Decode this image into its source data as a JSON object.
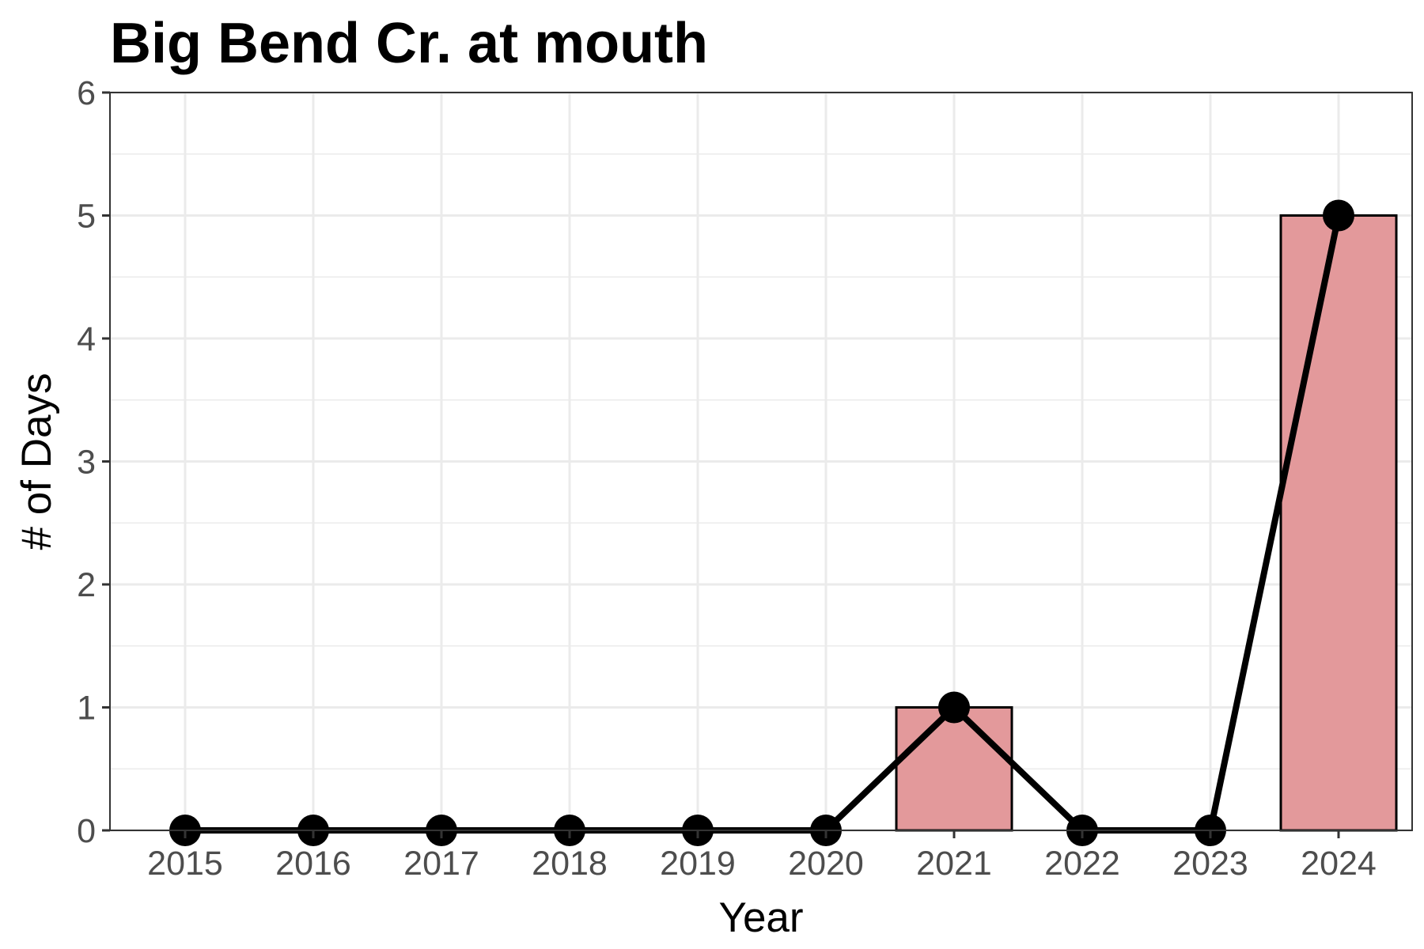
{
  "chart_data": {
    "type": "bar",
    "title": "Big Bend Cr. at mouth",
    "xlabel": "Year",
    "ylabel": "# of Days",
    "categories": [
      "2015",
      "2016",
      "2017",
      "2018",
      "2019",
      "2020",
      "2021",
      "2022",
      "2023",
      "2024"
    ],
    "values": [
      0,
      0,
      0,
      0,
      0,
      0,
      1,
      0,
      0,
      5
    ],
    "line_overlay": {
      "values": [
        0,
        0,
        0,
        0,
        0,
        0,
        1,
        0,
        0,
        5
      ],
      "color": "#000000",
      "markers": true
    },
    "y_ticks": [
      "0",
      "1",
      "2",
      "3",
      "4",
      "5",
      "6"
    ],
    "ylim": [
      0,
      6
    ],
    "grid": true,
    "legend": "none",
    "colors": {
      "bar_fill": "#e3999b",
      "bar_stroke": "#000000",
      "line": "#000000",
      "grid": "#ebebeb",
      "panel_border": "#333333"
    }
  }
}
